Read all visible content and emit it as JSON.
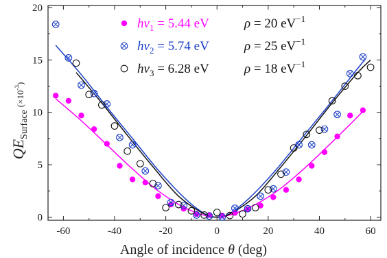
{
  "chart_data": {
    "type": "scatter",
    "xlabel": {
      "text": "Angle of incidence ",
      "symbol": "θ",
      "unit": " (deg)"
    },
    "ylabel": {
      "main": "QE",
      "sub": "Surface",
      "scale": "(×10",
      "scale_exp": "-3",
      "scale_close": ")"
    },
    "xlim": [
      -66,
      64
    ],
    "ylim": [
      -0.3,
      20.2
    ],
    "xticks": [
      -60,
      -40,
      -20,
      0,
      20,
      40,
      60
    ],
    "yticks": [
      0,
      5,
      10,
      15,
      20
    ],
    "legend_position": "top-center",
    "series": [
      {
        "name": "hν1 = 5.44 eV   ρ = 20 eV−1",
        "legend": {
          "lhs": "hν",
          "sub": "1",
          "energy": " = 5.44 eV",
          "rho": "ρ = 20 eV",
          "exp": "−1"
        },
        "marker": "filled-circle",
        "color": "#ff00ff",
        "x": [
          -63,
          -58,
          -53,
          -48,
          -43,
          -38,
          -33,
          -28,
          -23,
          -18,
          -13,
          -8,
          -3,
          2,
          7,
          12,
          17,
          22,
          27,
          32,
          37,
          42,
          47,
          52,
          57
        ],
        "y": [
          11.6,
          11.1,
          9.7,
          8.4,
          7.0,
          4.9,
          3.6,
          3.3,
          2.0,
          1.2,
          0.8,
          0.3,
          0.2,
          0.15,
          0.4,
          0.75,
          1.1,
          1.9,
          2.6,
          3.6,
          4.9,
          6.2,
          7.7,
          9.7,
          10.2
        ],
        "fit": {
          "type": "line",
          "x": [
            -63,
            -53,
            -43,
            -33,
            -23,
            -13,
            -5,
            0,
            5,
            13,
            23,
            33,
            43,
            53,
            57
          ],
          "y": [
            11.3,
            9.2,
            6.9,
            4.6,
            2.5,
            0.95,
            0.18,
            0.0,
            0.2,
            0.95,
            2.4,
            4.4,
            6.7,
            9.1,
            10.1
          ]
        }
      },
      {
        "name": "hν2 = 5.74 eV   ρ = 25 eV−1",
        "legend": {
          "lhs": "hν",
          "sub": "2",
          "energy": " = 5.74 eV",
          "rho": "ρ = 25 eV",
          "exp": "−1"
        },
        "marker": "circle-x",
        "color": "#1a3fc9",
        "x": [
          -63,
          -58,
          -53,
          -48,
          -43,
          -38,
          -33,
          -28,
          -23,
          -18,
          -13,
          -8,
          -3,
          2,
          7,
          12,
          17,
          22,
          27,
          32,
          37,
          42,
          47,
          52,
          57
        ],
        "y": [
          18.4,
          15.2,
          12.6,
          11.8,
          10.8,
          7.6,
          6.9,
          4.4,
          3.0,
          1.4,
          1.1,
          0.2,
          0.1,
          0.0,
          0.85,
          0.8,
          2.0,
          2.7,
          4.3,
          6.9,
          6.9,
          8.4,
          9.8,
          13.7,
          15.3
        ],
        "fit": {
          "type": "line",
          "x": [
            -63,
            -53,
            -43,
            -33,
            -23,
            -13,
            -5,
            0,
            5,
            13,
            23,
            33,
            43,
            53,
            58
          ],
          "y": [
            16.4,
            13.6,
            10.5,
            7.5,
            4.5,
            1.9,
            0.35,
            0.0,
            0.35,
            1.9,
            4.5,
            7.5,
            10.5,
            13.6,
            15.1
          ]
        }
      },
      {
        "name": "hν3 = 6.28 eV   ρ = 18 eV−1",
        "legend": {
          "lhs": "hν",
          "sub": "3",
          "energy": " = 6.28 eV",
          "rho": "ρ = 18 eV",
          "exp": "−1"
        },
        "marker": "open-circle",
        "color": "#111111",
        "x": [
          -55,
          -50,
          -45,
          -40,
          -35,
          -30,
          -25,
          -20,
          -15,
          -10,
          -5,
          0,
          5,
          10,
          15,
          20,
          25,
          30,
          35,
          40,
          45,
          50,
          55,
          60
        ],
        "y": [
          14.7,
          11.7,
          10.7,
          8.7,
          6.3,
          5.1,
          3.2,
          0.9,
          1.2,
          0.6,
          0.2,
          0.45,
          0.15,
          0.3,
          0.9,
          2.6,
          4.1,
          6.6,
          7.9,
          8.3,
          11.1,
          12.5,
          13.5,
          14.3
        ],
        "fit": {
          "type": "line",
          "x": [
            -55,
            -45,
            -35,
            -25,
            -15,
            -5,
            0,
            5,
            15,
            25,
            35,
            45,
            55,
            60
          ],
          "y": [
            13.8,
            10.9,
            7.8,
            4.8,
            2.0,
            0.3,
            0.0,
            0.3,
            2.0,
            4.8,
            7.8,
            10.9,
            13.8,
            15.0
          ]
        }
      }
    ]
  }
}
